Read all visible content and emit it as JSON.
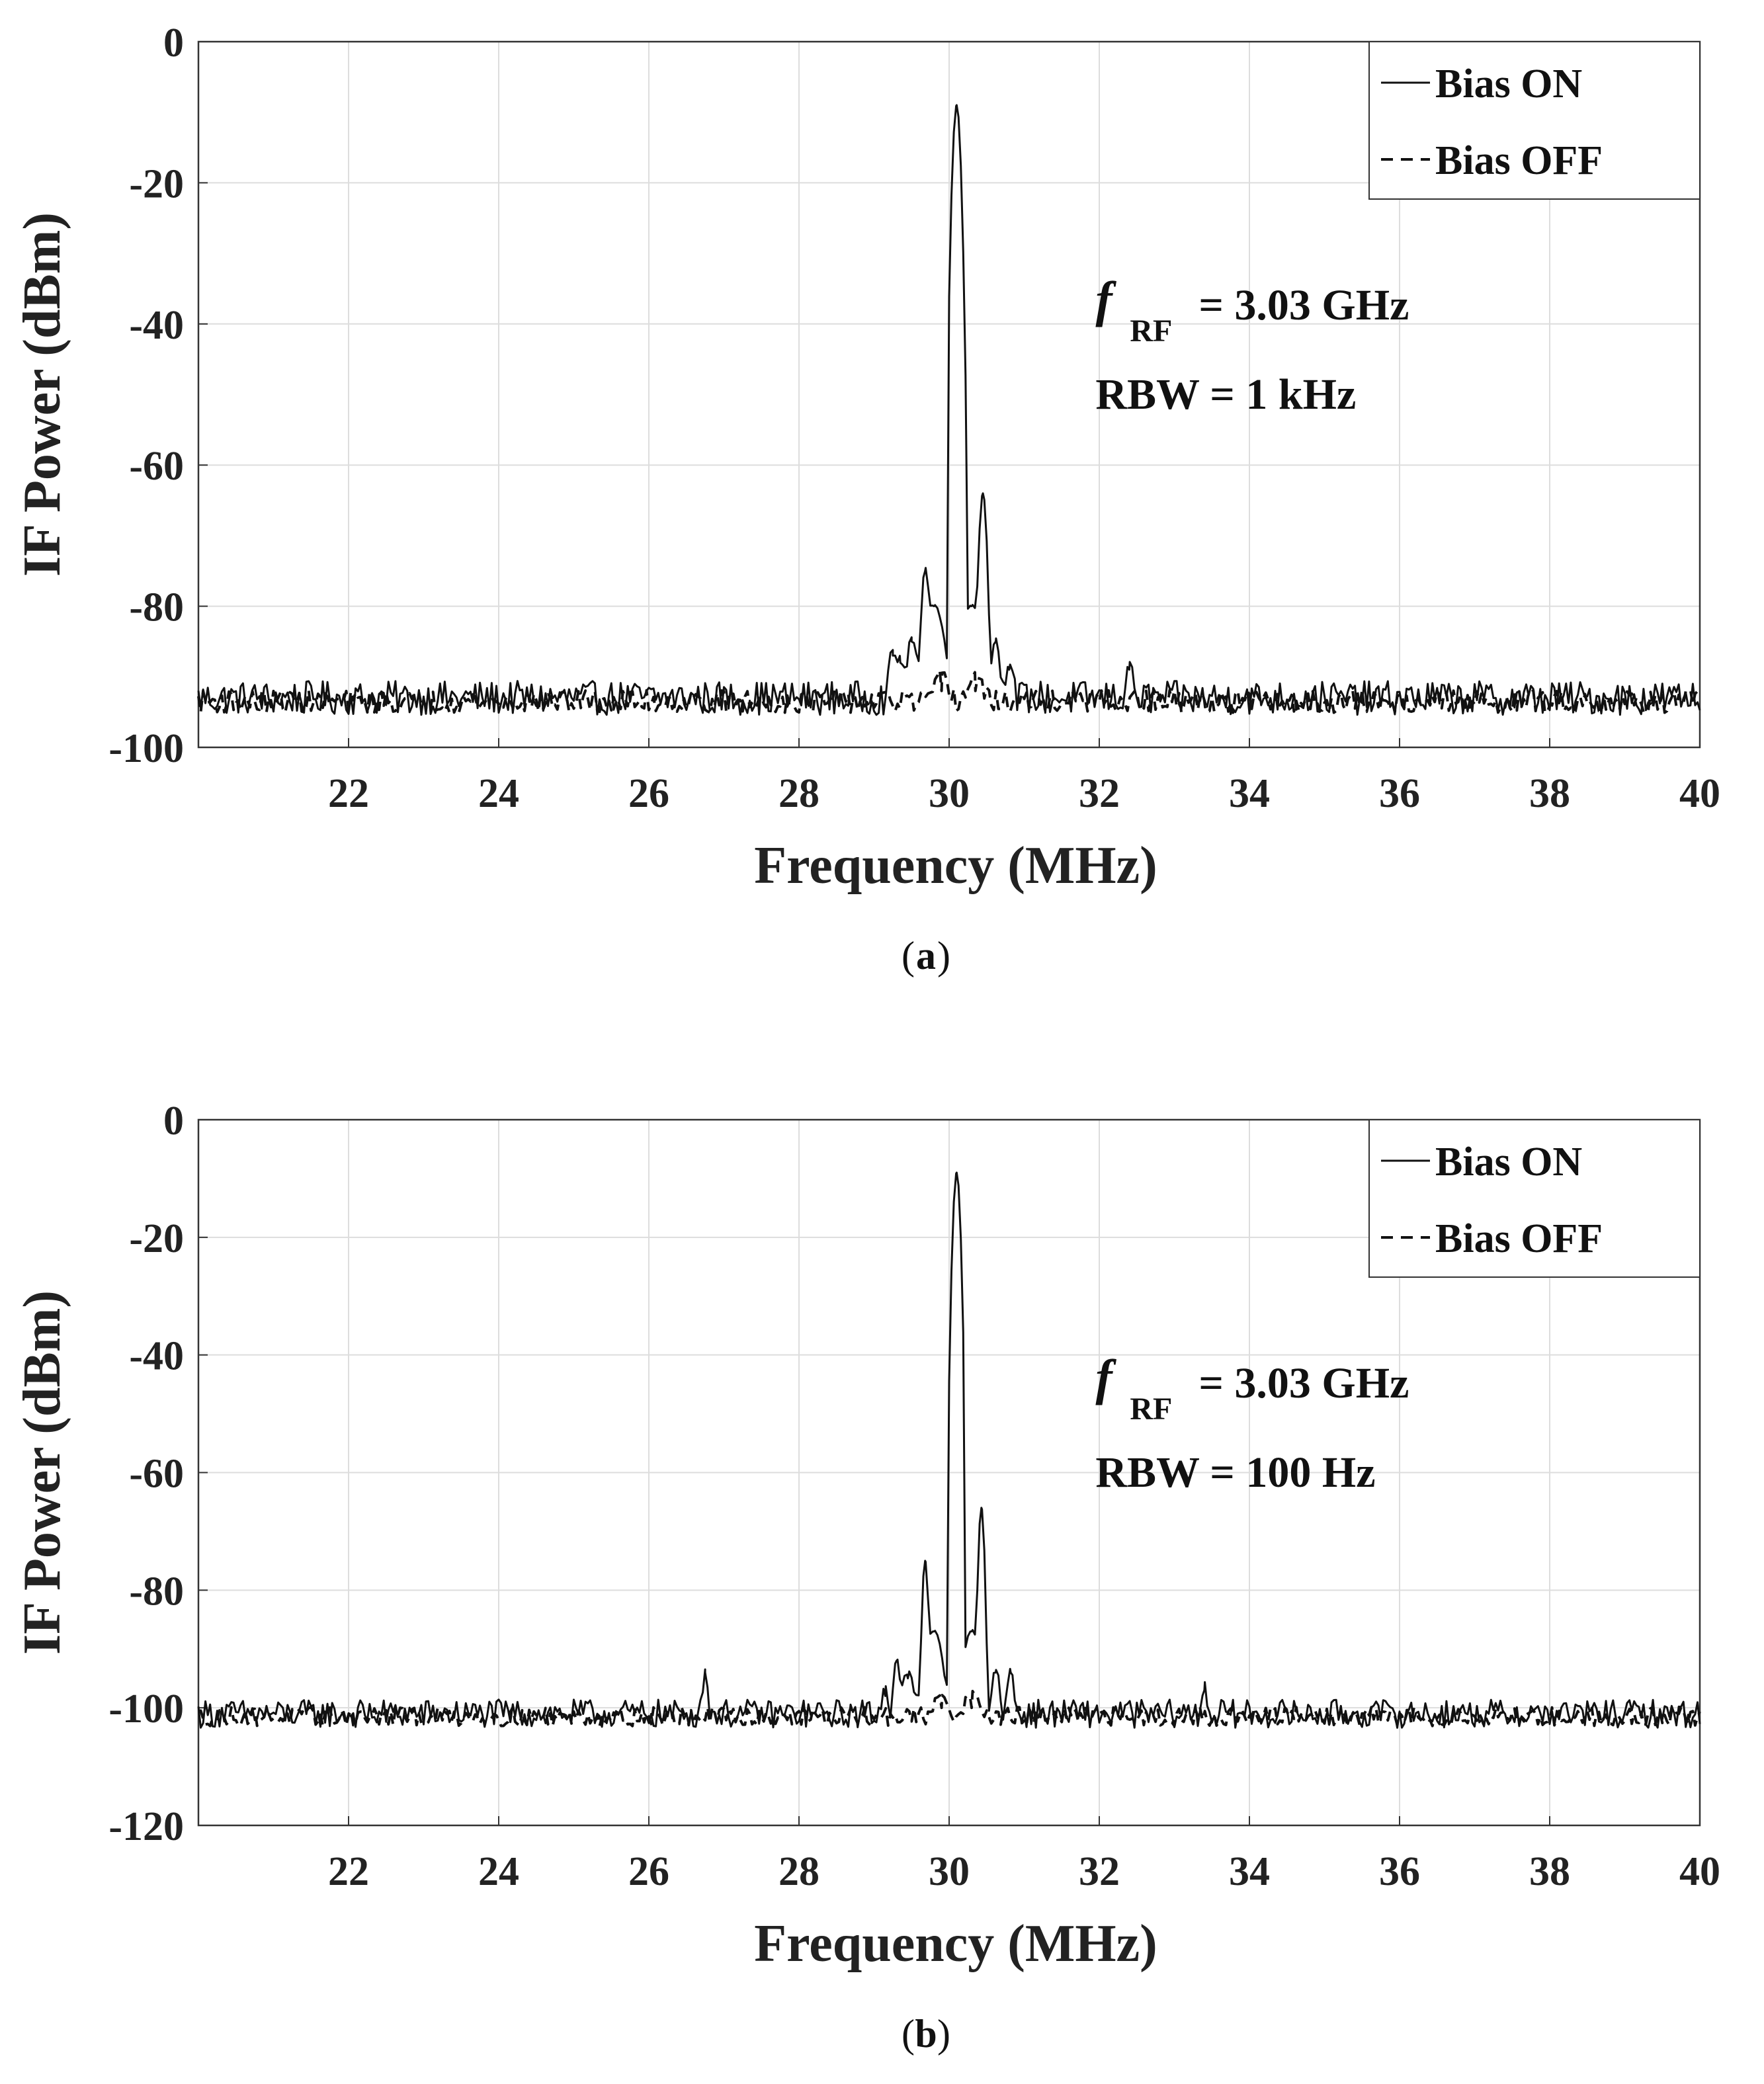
{
  "chart_data": [
    {
      "type": "line",
      "caption_letter": "a",
      "xlabel": "Frequency (MHz)",
      "ylabel": "IF Power (dBm)",
      "xlim": [
        20,
        40
      ],
      "ylim": [
        -100,
        0
      ],
      "xticks": [
        "22",
        "24",
        "26",
        "28",
        "30",
        "32",
        "34",
        "36",
        "38",
        "40"
      ],
      "yticks": [
        "0",
        "-20",
        "-40",
        "-60",
        "-80",
        "-100"
      ],
      "grid": true,
      "legend_position": "top-right",
      "annotation": {
        "f_symbol": "f",
        "f_subscript": "RF",
        "f_value": "= 3.03 GHz",
        "rbw": "RBW = 1 kHz"
      },
      "noise_floor": {
        "on": -93,
        "off": -93.5
      },
      "series": [
        {
          "name": "Bias ON",
          "style": "solid",
          "peaks": [
            {
              "x": 29.25,
              "y": -87,
              "w": 0.05
            },
            {
              "x": 29.35,
              "y": -88,
              "w": 0.04
            },
            {
              "x": 29.5,
              "y": -85,
              "w": 0.06
            },
            {
              "x": 29.68,
              "y": -75,
              "w": 0.04
            },
            {
              "x": 29.8,
              "y": -80,
              "w": 0.12
            },
            {
              "x": 30.1,
              "y": -9,
              "w": 0.04
            },
            {
              "x": 30.3,
              "y": -80,
              "w": 0.12
            },
            {
              "x": 30.45,
              "y": -64,
              "w": 0.04
            },
            {
              "x": 30.62,
              "y": -85,
              "w": 0.05
            },
            {
              "x": 30.8,
              "y": -89,
              "w": 0.05
            },
            {
              "x": 32.4,
              "y": -89,
              "w": 0.04
            }
          ]
        },
        {
          "name": "Bias OFF",
          "style": "dashed",
          "peaks": [
            {
              "x": 29.9,
              "y": -92,
              "w": 0.1
            },
            {
              "x": 30.35,
              "y": -92,
              "w": 0.1
            }
          ]
        }
      ]
    },
    {
      "type": "line",
      "caption_letter": "b",
      "xlabel": "Frequency (MHz)",
      "ylabel": "IF Power (dBm)",
      "xlim": [
        20,
        40
      ],
      "ylim": [
        -120,
        0
      ],
      "xticks": [
        "22",
        "24",
        "26",
        "28",
        "30",
        "32",
        "34",
        "36",
        "38",
        "40"
      ],
      "yticks": [
        "0",
        "-20",
        "-40",
        "-60",
        "-80",
        "-100",
        "-120"
      ],
      "grid": true,
      "legend_position": "top-right",
      "annotation": {
        "f_symbol": "f",
        "f_subscript": "RF",
        "f_value": "= 3.03 GHz",
        "rbw": "RBW = 100 Hz"
      },
      "noise_floor": {
        "on": -101,
        "off": -101.5
      },
      "series": [
        {
          "name": "Bias ON",
          "style": "solid",
          "peaks": [
            {
              "x": 26.75,
              "y": -94,
              "w": 0.03
            },
            {
              "x": 29.15,
              "y": -98,
              "w": 0.04
            },
            {
              "x": 29.3,
              "y": -92,
              "w": 0.04
            },
            {
              "x": 29.45,
              "y": -95,
              "w": 0.08
            },
            {
              "x": 29.68,
              "y": -75,
              "w": 0.03
            },
            {
              "x": 29.8,
              "y": -87,
              "w": 0.1
            },
            {
              "x": 30.1,
              "y": -9,
              "w": 0.035
            },
            {
              "x": 30.3,
              "y": -87,
              "w": 0.1
            },
            {
              "x": 30.43,
              "y": -66,
              "w": 0.03
            },
            {
              "x": 30.62,
              "y": -94,
              "w": 0.05
            },
            {
              "x": 30.82,
              "y": -94,
              "w": 0.04
            },
            {
              "x": 33.4,
              "y": -97,
              "w": 0.03
            }
          ]
        },
        {
          "name": "Bias OFF",
          "style": "dashed",
          "peaks": [
            {
              "x": 29.9,
              "y": -100,
              "w": 0.1
            },
            {
              "x": 30.3,
              "y": -100,
              "w": 0.1
            }
          ]
        }
      ]
    }
  ]
}
